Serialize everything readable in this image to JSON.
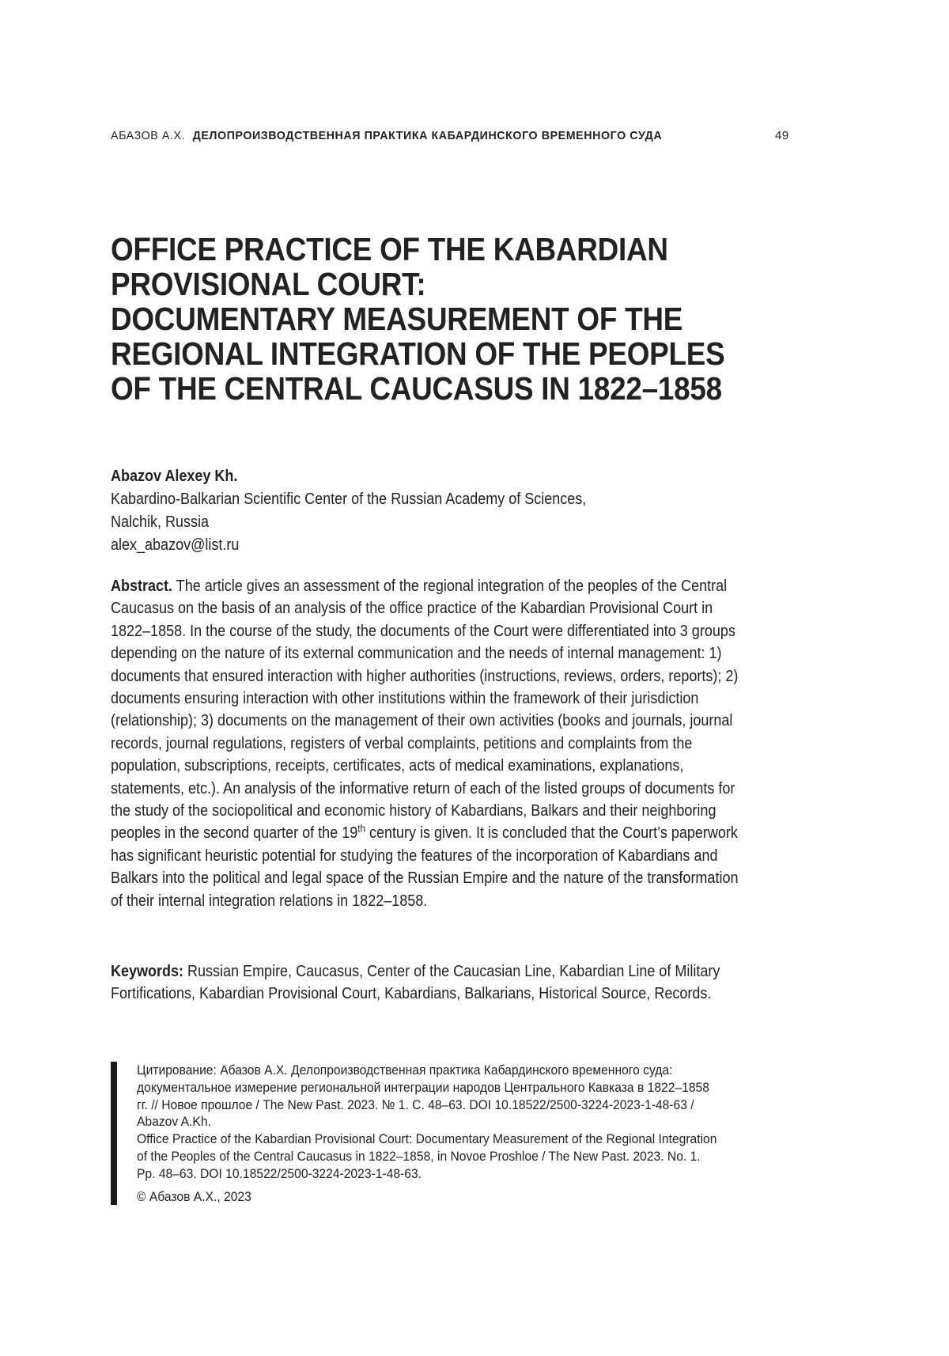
{
  "header": {
    "running_author": "АБАЗОВ А.Х.",
    "running_title": "ДЕЛОПРОИЗВОДСТВЕННАЯ ПРАКТИКА КАБАРДИНСКОГО ВРЕМЕННОГО СУДА",
    "page_number": "49"
  },
  "title": {
    "lines": [
      "OFFICE PRACTICE OF THE KABARDIAN",
      "PROVISIONAL COURT:",
      "DOCUMENTARY MEASUREMENT OF THE",
      "REGIONAL INTEGRATION OF THE PEOPLES",
      "OF THE CENTRAL CAUCASUS IN 1822–1858"
    ]
  },
  "author": {
    "name": "Abazov Alexey Kh.",
    "affiliation": "Kabardino-Balkarian Scientific Center of the Russian Academy of Sciences,",
    "city": "Nalchik, Russia",
    "email": "alex_abazov@list.ru"
  },
  "abstract": {
    "label": "Abstract.",
    "text_before_sup": " The article gives an assessment of the regional integration of the peoples of the Central Caucasus on the basis of an analysis of the office practice of the Kabardian Provisional Court in 1822–1858. In the course of the study, the documents of the Court were differentiated into 3 groups depending on the nature of its external communication and the needs of internal management: 1) documents that ensured interaction with higher authorities (instructions, reviews, orders, reports); 2) documents ensuring interaction with other institutions within the framework of their jurisdiction (relationship); 3) documents on the management of their own activities (books and journals, journal records, journal regulations, registers of verbal complaints, petitions and complaints from the population, subscriptions, receipts, certificates, acts of medical examinations, explanations, statements, etc.). An analysis of the informative return of each of the listed groups of documents for the study of the sociopolitical and economic history of Kabardians, Balkars and their neighboring peoples in the second quarter of the 19",
    "superscript": "th",
    "text_after_sup": " century is given. It is concluded that the Court’s paperwork has significant heuristic potential for studying the features of the incorporation of Kabardians and Balkars into the political and legal space of the Russian Empire and the nature of the transformation of their internal integration relations in 1822–1858."
  },
  "keywords": {
    "label": "Keywords:",
    "text": " Russian Empire, Caucasus, Center of the Caucasian Line, Kabardian Line of Military Fortifications, Kabardian Provisional Court, Kabardians, Balkarians, Historical Source, Records."
  },
  "citation": {
    "russian": "Цитирование: Абазов А.Х. Делопроизводственная практика Кабардинского временного суда: документальное измерение региональной интеграции народов Центрального Кавказа в 1822–1858 гг. // Новое прошлое / The New Past. 2023. № 1. С. 48–63. DOI 10.18522/2500-3224-2023-1-48-63 / Abazov A.Kh.",
    "english": "Office Practice of the Kabardian Provisional Court: Documentary Measurement of the Regional Integration of the Peoples of the Central Caucasus in 1822–1858, in Novoe Proshloe / The New Past. 2023. No. 1. Pp. 48–63. DOI 10.18522/2500-3224-2023-1-48-63.",
    "copyright": "© Абазов А.Х., 2023"
  }
}
